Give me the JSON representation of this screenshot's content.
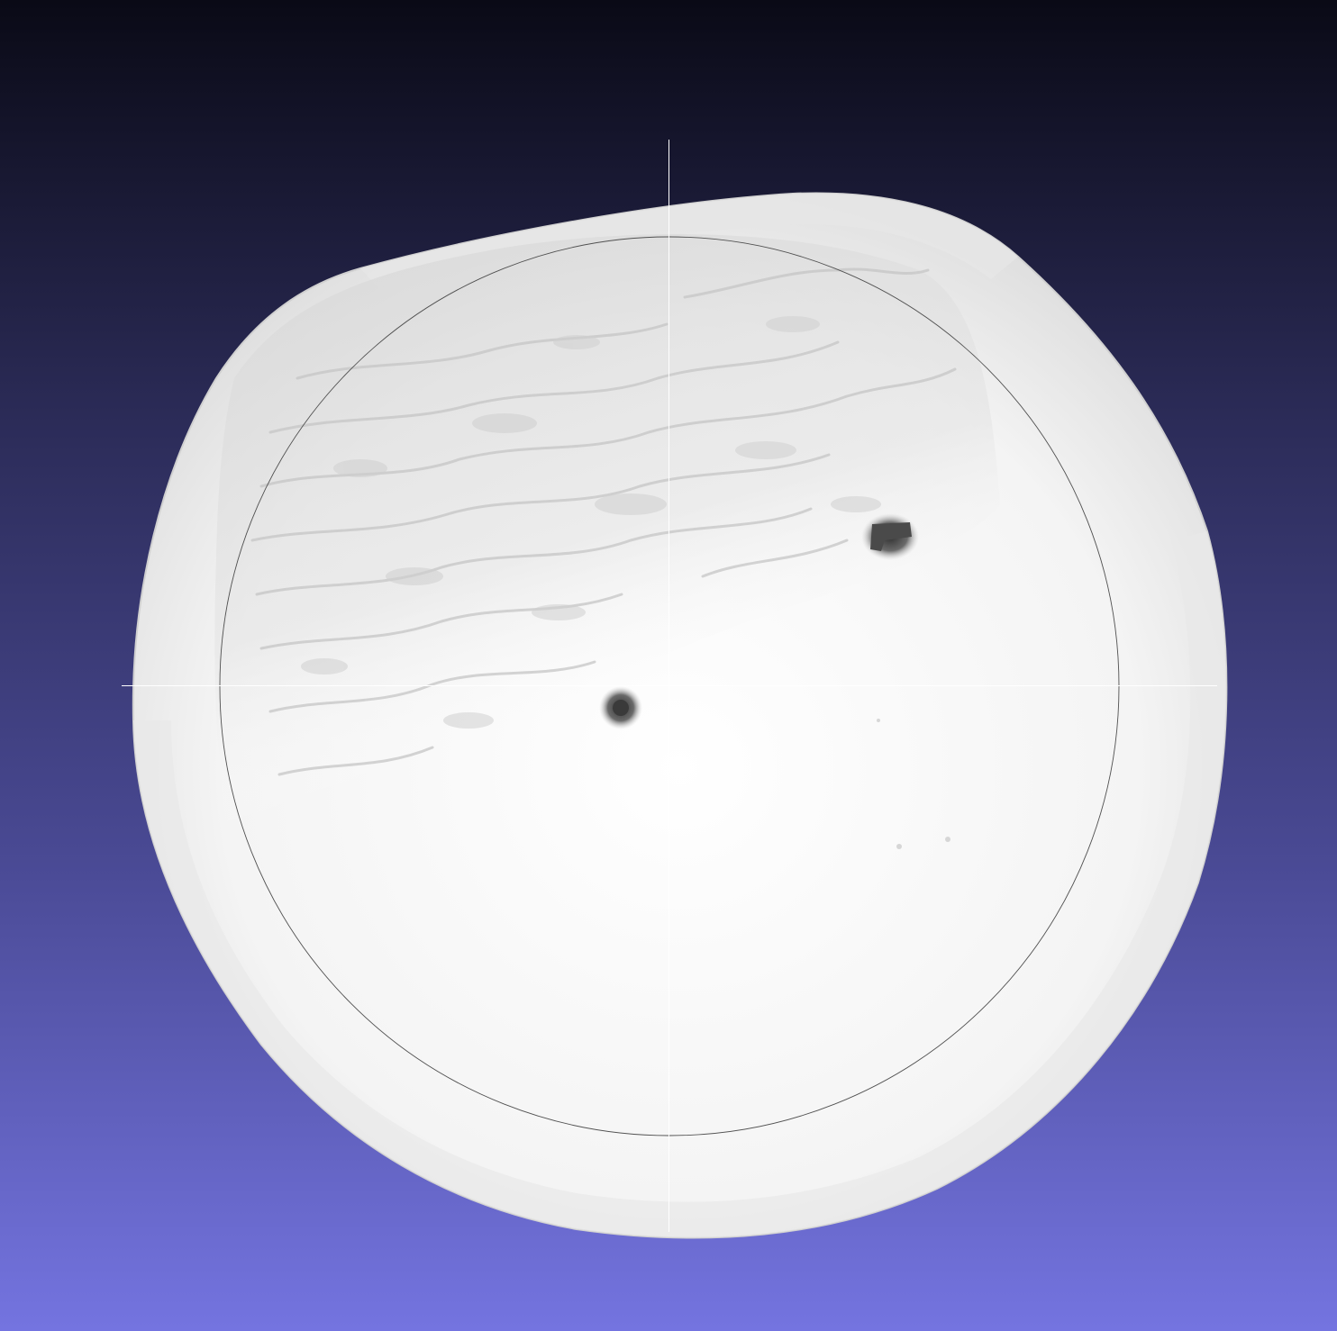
{
  "viewer": {
    "background_top": "#0a0a16",
    "background_bottom": "#7474e0",
    "mesh_color": "#f2f2f2",
    "highlight_color": "#ffffff",
    "trackball_circle_color": "#505050",
    "crosshair_color": "#ffffff"
  }
}
